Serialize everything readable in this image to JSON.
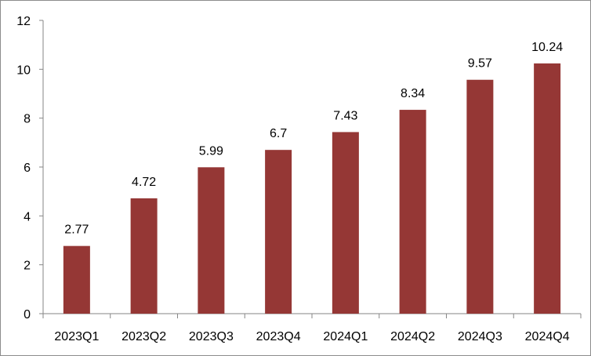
{
  "chart_data": {
    "type": "bar",
    "title": "",
    "xlabel": "",
    "ylabel": "",
    "categories": [
      "2023Q1",
      "2023Q2",
      "2023Q3",
      "2023Q4",
      "2024Q1",
      "2024Q2",
      "2024Q3",
      "2024Q4"
    ],
    "series": [
      {
        "values": [
          2.77,
          4.72,
          5.99,
          6.7,
          7.43,
          8.34,
          9.57,
          10.24
        ],
        "data_labels": [
          "2.77",
          "4.72",
          "5.99",
          "6.7",
          "7.43",
          "8.34",
          "9.57",
          "10.24"
        ],
        "color": "#953735"
      }
    ],
    "ylim": [
      0,
      12
    ],
    "yticks": [
      0,
      2,
      4,
      6,
      8,
      10,
      12
    ],
    "ytick_labels": [
      "0",
      "2",
      "4",
      "6",
      "8",
      "10",
      "12"
    ],
    "grid": false,
    "legend": "none"
  }
}
